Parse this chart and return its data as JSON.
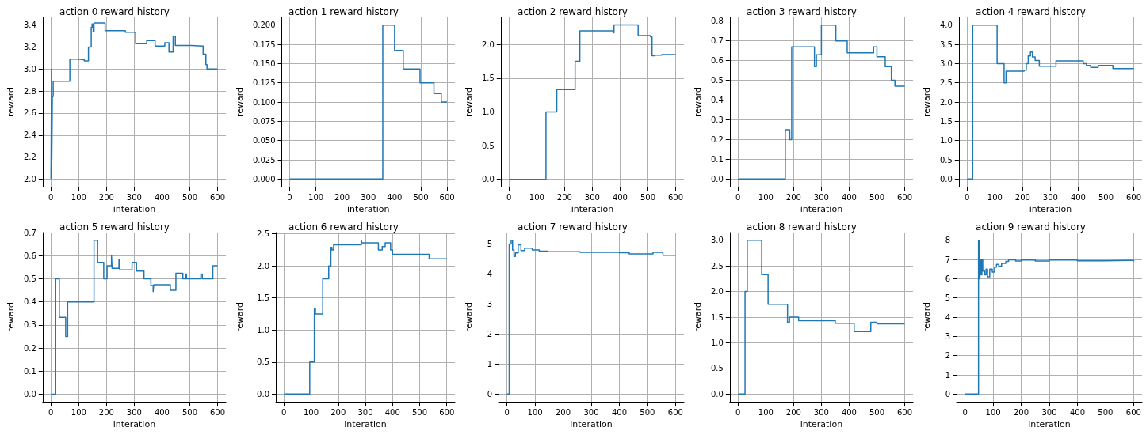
{
  "chart_data": [
    {
      "type": "step",
      "title": "action 0 reward history",
      "xlabel": "interation",
      "ylabel": "reward",
      "color": "#1f77b4",
      "grid": true,
      "xlim": [
        -30,
        630
      ],
      "xticks": [
        0,
        100,
        200,
        300,
        400,
        500,
        600
      ],
      "ylim": [
        1.93,
        3.47
      ],
      "yticks": [
        {
          "value": 2,
          "label": "2.0"
        },
        {
          "value": 2.2,
          "label": "2.2"
        },
        {
          "value": 2.4,
          "label": "2.4"
        },
        {
          "value": 2.6,
          "label": "2.6"
        },
        {
          "value": 2.8,
          "label": "2.8"
        },
        {
          "value": 3,
          "label": "3.0"
        },
        {
          "value": 3.2,
          "label": "3.2"
        },
        {
          "value": 3.4,
          "label": "3.4"
        }
      ],
      "x": [
        0,
        2,
        3,
        5,
        8,
        68,
        95,
        120,
        135,
        145,
        148,
        152,
        155,
        195,
        268,
        305,
        345,
        375,
        410,
        425,
        440,
        448,
        505,
        548,
        558,
        562,
        600
      ],
      "values": [
        2.0,
        3.0,
        2.17,
        2.75,
        2.89,
        3.09,
        3.085,
        3.075,
        3.2,
        3.38,
        3.41,
        3.34,
        3.42,
        3.35,
        3.335,
        3.23,
        3.26,
        3.21,
        3.24,
        3.155,
        3.3,
        3.215,
        3.21,
        3.135,
        3.04,
        3.0,
        3.0
      ]
    },
    {
      "type": "step",
      "title": "action 1 reward history",
      "xlabel": "interation",
      "ylabel": "reward",
      "color": "#1f77b4",
      "grid": true,
      "xlim": [
        -30,
        630
      ],
      "xticks": [
        0,
        100,
        200,
        300,
        400,
        500,
        600
      ],
      "ylim": [
        -0.01,
        0.21
      ],
      "yticks": [
        {
          "value": 0,
          "label": "0.000"
        },
        {
          "value": 0.025,
          "label": "0.025"
        },
        {
          "value": 0.05,
          "label": "0.050"
        },
        {
          "value": 0.075,
          "label": "0.075"
        },
        {
          "value": 0.1,
          "label": "0.100"
        },
        {
          "value": 0.125,
          "label": "0.125"
        },
        {
          "value": 0.15,
          "label": "0.150"
        },
        {
          "value": 0.175,
          "label": "0.175"
        },
        {
          "value": 0.2,
          "label": "0.200"
        }
      ],
      "x": [
        0,
        355,
        400,
        433,
        497,
        550,
        578,
        600
      ],
      "values": [
        0,
        0.2,
        0.167,
        0.143,
        0.125,
        0.111,
        0.1,
        0.1
      ]
    },
    {
      "type": "step",
      "title": "action 2 reward history",
      "xlabel": "interation",
      "ylabel": "reward",
      "color": "#1f77b4",
      "grid": true,
      "xlim": [
        -30,
        630
      ],
      "xticks": [
        0,
        100,
        200,
        300,
        400,
        500,
        600
      ],
      "ylim": [
        -0.11,
        2.4
      ],
      "yticks": [
        {
          "value": 0,
          "label": "0.0"
        },
        {
          "value": 0.5,
          "label": "0.5"
        },
        {
          "value": 1,
          "label": "1.0"
        },
        {
          "value": 1.5,
          "label": "1.5"
        },
        {
          "value": 2,
          "label": "2.0"
        }
      ],
      "x": [
        0,
        133,
        172,
        238,
        255,
        375,
        378,
        465,
        510,
        515,
        525,
        550,
        600
      ],
      "values": [
        0,
        1.0,
        1.33,
        1.75,
        2.2,
        2.17,
        2.29,
        2.13,
        2.11,
        1.83,
        1.84,
        1.85,
        1.85
      ]
    },
    {
      "type": "step",
      "title": "action 3 reward history",
      "xlabel": "interation",
      "ylabel": "reward",
      "color": "#1f77b4",
      "grid": true,
      "xlim": [
        -30,
        630
      ],
      "xticks": [
        0,
        100,
        200,
        300,
        400,
        500,
        600
      ],
      "ylim": [
        -0.039,
        0.819
      ],
      "yticks": [
        {
          "value": 0,
          "label": "0.0"
        },
        {
          "value": 0.1,
          "label": "0.1"
        },
        {
          "value": 0.2,
          "label": "0.2"
        },
        {
          "value": 0.3,
          "label": "0.3"
        },
        {
          "value": 0.4,
          "label": "0.4"
        },
        {
          "value": 0.5,
          "label": "0.5"
        },
        {
          "value": 0.6,
          "label": "0.6"
        },
        {
          "value": 0.7,
          "label": "0.7"
        },
        {
          "value": 0.8,
          "label": "0.8"
        }
      ],
      "x": [
        0,
        170,
        186,
        193,
        275,
        282,
        300,
        352,
        393,
        488,
        500,
        530,
        552,
        565,
        600
      ],
      "values": [
        0,
        0.25,
        0.2,
        0.67,
        0.57,
        0.63,
        0.78,
        0.7,
        0.64,
        0.67,
        0.62,
        0.57,
        0.5,
        0.47,
        0.47
      ]
    },
    {
      "type": "step",
      "title": "action 4 reward history",
      "xlabel": "interation",
      "ylabel": "reward",
      "color": "#1f77b4",
      "grid": true,
      "xlim": [
        -30,
        630
      ],
      "xticks": [
        0,
        100,
        200,
        300,
        400,
        500,
        600
      ],
      "ylim": [
        -0.2,
        4.2
      ],
      "yticks": [
        {
          "value": 0,
          "label": "0.0"
        },
        {
          "value": 0.5,
          "label": "0.5"
        },
        {
          "value": 1,
          "label": "1.0"
        },
        {
          "value": 1.5,
          "label": "1.5"
        },
        {
          "value": 2,
          "label": "2.0"
        },
        {
          "value": 2.5,
          "label": "2.5"
        },
        {
          "value": 3,
          "label": "3.0"
        },
        {
          "value": 3.5,
          "label": "3.5"
        },
        {
          "value": 4,
          "label": "4.0"
        }
      ],
      "x": [
        0,
        20,
        108,
        133,
        140,
        205,
        213,
        220,
        228,
        235,
        245,
        260,
        320,
        418,
        430,
        445,
        472,
        525,
        600
      ],
      "values": [
        0,
        4.0,
        3.0,
        2.5,
        2.8,
        2.83,
        3.0,
        3.2,
        3.3,
        3.17,
        3.08,
        2.93,
        3.07,
        3.0,
        2.95,
        2.9,
        2.95,
        2.87,
        2.87
      ]
    },
    {
      "type": "step",
      "title": "action 5 reward history",
      "xlabel": "interation",
      "ylabel": "reward",
      "color": "#1f77b4",
      "grid": true,
      "xlim": [
        -30,
        630
      ],
      "xticks": [
        0,
        100,
        200,
        300,
        400,
        500,
        600
      ],
      "ylim": [
        -0.033,
        0.7
      ],
      "yticks": [
        {
          "value": 0,
          "label": "0.0"
        },
        {
          "value": 0.1,
          "label": "0.1"
        },
        {
          "value": 0.2,
          "label": "0.2"
        },
        {
          "value": 0.3,
          "label": "0.3"
        },
        {
          "value": 0.4,
          "label": "0.4"
        },
        {
          "value": 0.5,
          "label": "0.5"
        },
        {
          "value": 0.6,
          "label": "0.6"
        },
        {
          "value": 0.7,
          "label": "0.7"
        }
      ],
      "x": [
        0,
        17,
        30,
        53,
        60,
        155,
        168,
        190,
        202,
        218,
        220,
        245,
        248,
        292,
        308,
        335,
        360,
        368,
        370,
        430,
        450,
        475,
        485,
        488,
        540,
        545,
        583,
        600
      ],
      "values": [
        0,
        0.5,
        0.333,
        0.25,
        0.4,
        0.667,
        0.571,
        0.5,
        0.556,
        0.6,
        0.545,
        0.583,
        0.538,
        0.571,
        0.533,
        0.5,
        0.471,
        0.444,
        0.474,
        0.45,
        0.524,
        0.5,
        0.52,
        0.5,
        0.52,
        0.5,
        0.556,
        0.556
      ]
    },
    {
      "type": "step",
      "title": "action 6 reward history",
      "xlabel": "interation",
      "ylabel": "reward",
      "color": "#1f77b4",
      "grid": true,
      "xlim": [
        -30,
        630
      ],
      "xticks": [
        0,
        100,
        200,
        300,
        400,
        500,
        600
      ],
      "ylim": [
        -0.12,
        2.52
      ],
      "yticks": [
        {
          "value": 0,
          "label": "0.0"
        },
        {
          "value": 0.5,
          "label": "0.5"
        },
        {
          "value": 1,
          "label": "1.0"
        },
        {
          "value": 1.5,
          "label": "1.5"
        },
        {
          "value": 2,
          "label": "2.0"
        },
        {
          "value": 2.5,
          "label": "2.5"
        }
      ],
      "x": [
        0,
        95,
        112,
        116,
        143,
        165,
        173,
        177,
        183,
        285,
        287,
        348,
        362,
        373,
        393,
        400,
        535,
        600
      ],
      "values": [
        0,
        0.5,
        1.33,
        1.25,
        1.8,
        2.0,
        2.29,
        2.25,
        2.33,
        2.4,
        2.36,
        2.25,
        2.3,
        2.36,
        2.25,
        2.18,
        2.11,
        2.11
      ]
    },
    {
      "type": "step",
      "title": "action 7 reward history",
      "xlabel": "interation",
      "ylabel": "reward",
      "color": "#1f77b4",
      "grid": true,
      "xlim": [
        -30,
        630
      ],
      "xticks": [
        0,
        100,
        200,
        300,
        400,
        500,
        600
      ],
      "ylim": [
        -0.26,
        5.38
      ],
      "yticks": [
        0,
        1,
        2,
        3,
        4,
        5
      ],
      "x": [
        0,
        8,
        15,
        20,
        25,
        30,
        40,
        50,
        63,
        90,
        115,
        145,
        260,
        395,
        400,
        435,
        520,
        555,
        600
      ],
      "values": [
        0,
        5.0,
        5.12,
        4.8,
        4.58,
        4.7,
        4.97,
        4.78,
        4.86,
        4.8,
        4.76,
        4.74,
        4.72,
        4.73,
        4.71,
        4.67,
        4.72,
        4.62,
        4.62
      ]
    },
    {
      "type": "step",
      "title": "action 8 reward history",
      "xlabel": "interation",
      "ylabel": "reward",
      "color": "#1f77b4",
      "grid": true,
      "xlim": [
        -30,
        630
      ],
      "xticks": [
        0,
        100,
        200,
        300,
        400,
        500,
        600
      ],
      "ylim": [
        -0.15,
        3.15
      ],
      "yticks": [
        {
          "value": 0,
          "label": "0.0"
        },
        {
          "value": 0.5,
          "label": "0.5"
        },
        {
          "value": 1,
          "label": "1.0"
        },
        {
          "value": 1.5,
          "label": "1.5"
        },
        {
          "value": 2,
          "label": "2.0"
        },
        {
          "value": 2.5,
          "label": "2.5"
        },
        {
          "value": 3,
          "label": "3.0"
        }
      ],
      "x": [
        0,
        25,
        33,
        85,
        108,
        178,
        185,
        218,
        350,
        418,
        478,
        500,
        600
      ],
      "values": [
        0,
        2.0,
        3.0,
        2.33,
        1.75,
        1.4,
        1.5,
        1.43,
        1.38,
        1.22,
        1.4,
        1.37,
        1.37
      ]
    },
    {
      "type": "step",
      "title": "action 9 reward history",
      "xlabel": "interation",
      "ylabel": "reward",
      "color": "#1f77b4",
      "grid": true,
      "xlim": [
        -30,
        630
      ],
      "xticks": [
        0,
        100,
        200,
        300,
        400,
        500,
        600
      ],
      "ylim": [
        -0.4,
        8.4
      ],
      "yticks": [
        0,
        1,
        2,
        3,
        4,
        5,
        6,
        7,
        8
      ],
      "x": [
        0,
        48,
        50,
        53,
        57,
        60,
        63,
        70,
        75,
        80,
        88,
        97,
        105,
        112,
        120,
        130,
        145,
        155,
        180,
        200,
        250,
        300,
        400,
        500,
        580,
        600
      ],
      "values": [
        0,
        8.0,
        6.0,
        7.0,
        6.2,
        7.0,
        6.4,
        6.2,
        6.5,
        6.1,
        6.5,
        6.35,
        6.6,
        6.75,
        6.65,
        6.8,
        6.9,
        6.98,
        6.92,
        6.97,
        6.92,
        6.97,
        6.93,
        6.95,
        6.95,
        6.9
      ]
    }
  ]
}
